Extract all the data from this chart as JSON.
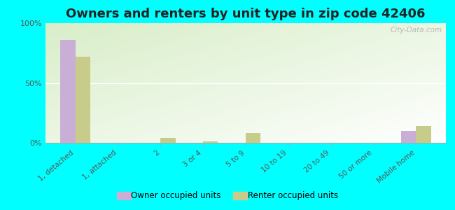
{
  "title": "Owners and renters by unit type in zip code 42406",
  "categories": [
    "1, detached",
    "1, attached",
    "2",
    "3 or 4",
    "5 to 9",
    "10 to 19",
    "20 to 49",
    "50 or more",
    "Mobile home"
  ],
  "owner_values": [
    86,
    0,
    0,
    0,
    0,
    0,
    0,
    0,
    10
  ],
  "renter_values": [
    72,
    0,
    4,
    1,
    8,
    0,
    0,
    0,
    14
  ],
  "owner_color": "#c9aed6",
  "renter_color": "#c8cc8a",
  "bg_top_left": "#d8eec8",
  "bg_bottom_right": "#f5faf0",
  "outer_background": "#00ffff",
  "ylim": [
    0,
    100
  ],
  "yticks": [
    0,
    50,
    100
  ],
  "ytick_labels": [
    "0%",
    "50%",
    "100%"
  ],
  "bar_width": 0.35,
  "legend_owner": "Owner occupied units",
  "legend_renter": "Renter occupied units",
  "title_fontsize": 13,
  "watermark": "City-Data.com"
}
